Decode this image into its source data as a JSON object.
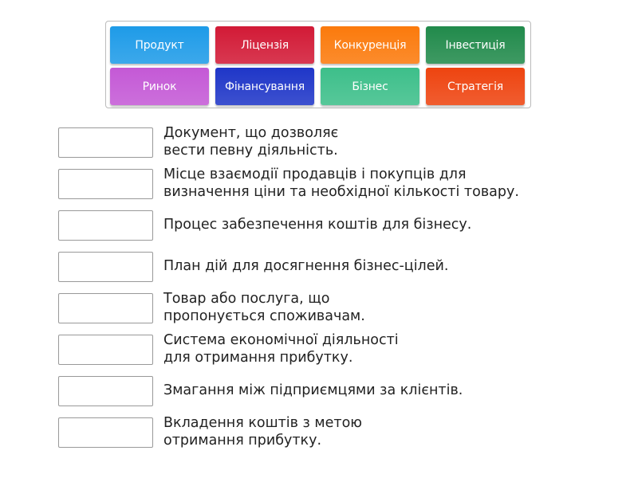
{
  "tiles": [
    {
      "label": "Продукт",
      "color": "#1e9be8"
    },
    {
      "label": "Ліцензія",
      "color": "#d21a36"
    },
    {
      "label": "Конкуренція",
      "color": "#fb7a0c"
    },
    {
      "label": "Інвестиція",
      "color": "#218a4b"
    },
    {
      "label": "Ринок",
      "color": "#c459d6"
    },
    {
      "label": "Фінансування",
      "color": "#1f36c8"
    },
    {
      "label": "Бізнес",
      "color": "#3dbf8a"
    },
    {
      "label": "Стратегія",
      "color": "#ee4410"
    }
  ],
  "definitions": [
    "Документ, що дозволяє\nвести певну діяльність.",
    "Місце взаємодії продавців і покупців для\nвизначення ціни та необхідної кількості товару.",
    "Процес забезпечення коштів для бізнесу.",
    "План дій для досягнення бізнес-цілей.",
    "Товар або послуга, що\nпропонується споживачам.",
    "Система економічної діяльності\nдля отримання прибутку.",
    "Змагання між підприємцями за клієнтів.",
    "Вкладення коштів з метою\nотримання прибутку."
  ]
}
